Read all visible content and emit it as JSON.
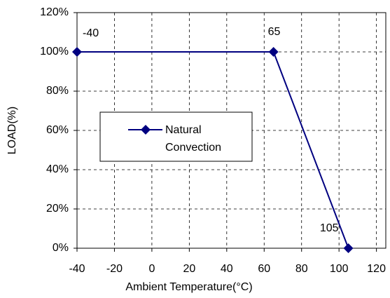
{
  "chart_data": {
    "type": "line",
    "x": [
      -40,
      65,
      105
    ],
    "series": [
      {
        "name": "Natural Convection",
        "color": "#000080",
        "values": [
          100,
          100,
          0
        ]
      }
    ],
    "xlabel": "Ambient Temperature(°C)",
    "ylabel": "LOAD(%)",
    "xlim": [
      -40,
      125
    ],
    "xticks": [
      -40,
      -20,
      0,
      20,
      40,
      60,
      80,
      100,
      120
    ],
    "ylim": [
      0,
      120
    ],
    "yticks": [
      {
        "value": 0,
        "label": "0%"
      },
      {
        "value": 20,
        "label": "20%"
      },
      {
        "value": 40,
        "label": "40%"
      },
      {
        "value": 60,
        "label": "60%"
      },
      {
        "value": 80,
        "label": "80%"
      },
      {
        "value": 100,
        "label": "100%"
      },
      {
        "value": 120,
        "label": "120%"
      }
    ],
    "grid": true
  }
}
